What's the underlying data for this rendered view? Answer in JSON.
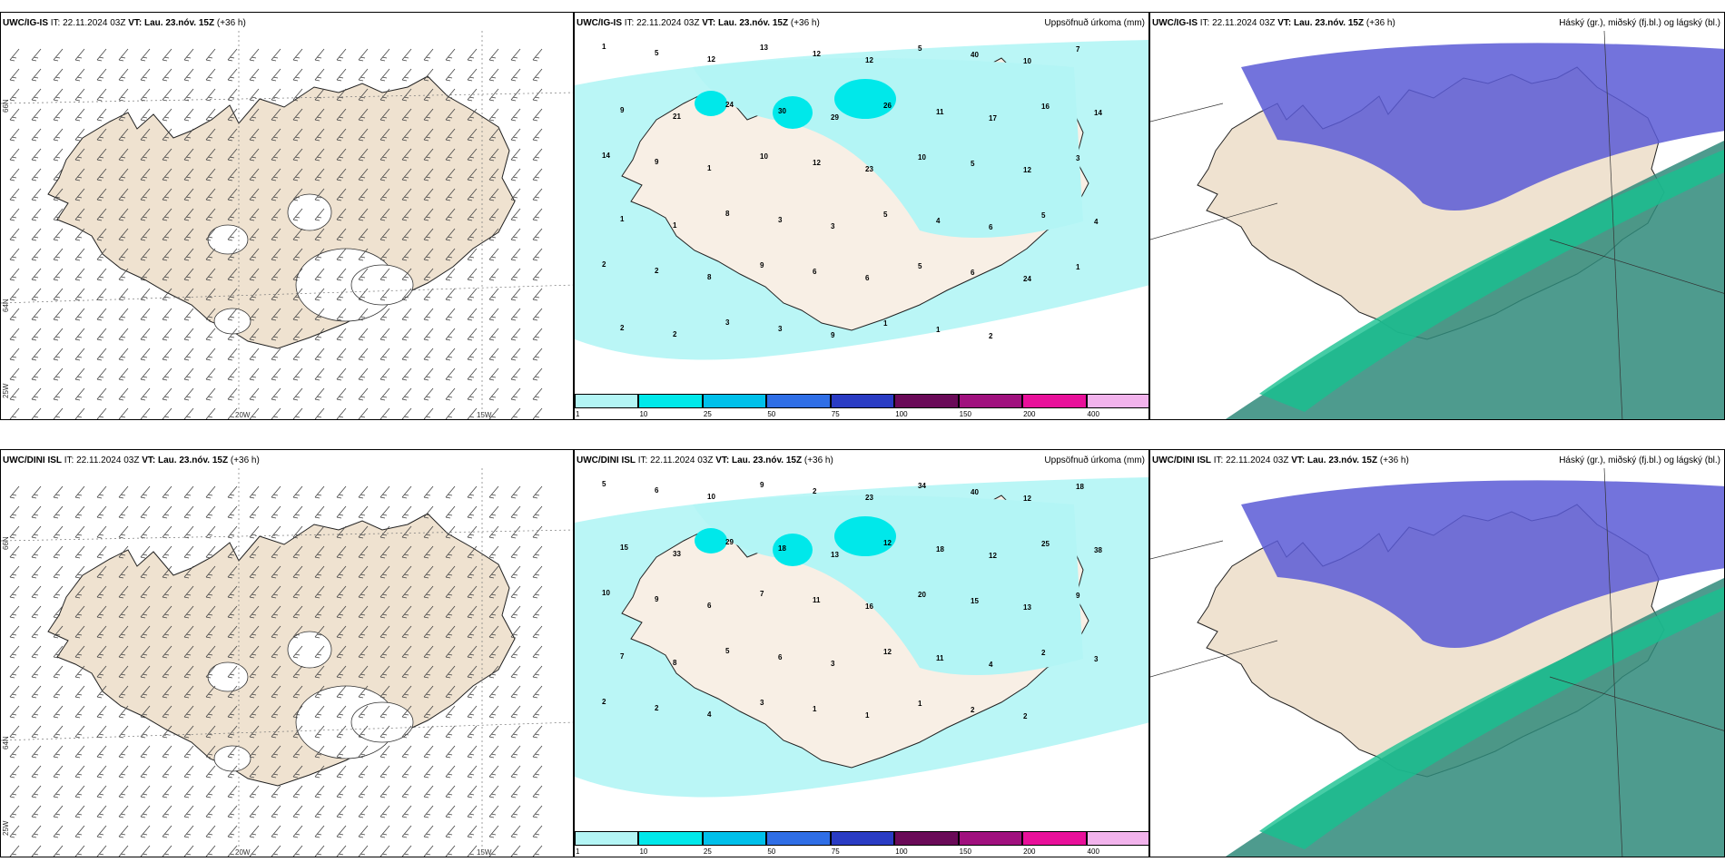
{
  "rows": [
    {
      "model": "UWC/IG-IS",
      "it_label": "IT:",
      "it_value": "22.11.2024 03Z",
      "vt_label": "VT:",
      "vt_value": "Lau. 23.nóv. 15Z",
      "lead": "(+36 h)"
    },
    {
      "model": "UWC/DINI ISL",
      "it_label": "IT:",
      "it_value": "22.11.2024 03Z",
      "vt_label": "VT:",
      "vt_value": "Lau. 23.nóv. 15Z",
      "lead": "(+36 h)"
    }
  ],
  "precip_title": "Uppsöfnuð úrkoma (mm)",
  "cloud_title": "Háský (gr.), miðský (fj.bl.) og lágský (bl.)",
  "axis": {
    "lon_20": "20W",
    "lon_15": "15W",
    "lat_66": "66N",
    "lat_64": "64N",
    "lon_25": "25W"
  },
  "colorbar": {
    "ticks": [
      "1",
      "10",
      "25",
      "50",
      "75",
      "100",
      "150",
      "200",
      "400"
    ],
    "colors": [
      "#b3f5f5",
      "#00e8ea",
      "#00c0ea",
      "#2f6ee6",
      "#2a3cc4",
      "#6a0a58",
      "#a0107e",
      "#e8109a",
      "#f2b3ec"
    ]
  },
  "colors": {
    "land": "#efe2d0",
    "land_light": "#f8efe5",
    "precip": "#b3f5f5",
    "precip_mid": "#00e8ea",
    "cloud_high": "#5a5ad6",
    "cloud_mid": "#2f8a7a",
    "cloud_low": "#18c090"
  },
  "precip_labels_top": [
    "1",
    "5",
    "12",
    "13",
    "12",
    "12",
    "5",
    "40",
    "10",
    "7",
    "9",
    "21",
    "24",
    "30",
    "29",
    "26",
    "11",
    "17",
    "16",
    "14",
    "14",
    "9",
    "1",
    "10",
    "12",
    "23",
    "10",
    "5",
    "12",
    "3",
    "1",
    "1",
    "8",
    "3",
    "3",
    "5",
    "4",
    "6",
    "5",
    "4",
    "2",
    "2",
    "8",
    "9",
    "6",
    "6",
    "5",
    "6",
    "24",
    "1",
    "2",
    "2",
    "3",
    "3",
    "9",
    "1",
    "1",
    "2"
  ],
  "precip_labels_bottom": [
    "5",
    "6",
    "10",
    "9",
    "2",
    "23",
    "34",
    "40",
    "12",
    "18",
    "15",
    "33",
    "29",
    "18",
    "13",
    "12",
    "18",
    "12",
    "25",
    "38",
    "10",
    "9",
    "6",
    "7",
    "11",
    "16",
    "20",
    "15",
    "13",
    "9",
    "7",
    "8",
    "5",
    "6",
    "3",
    "12",
    "11",
    "4",
    "2",
    "3",
    "2",
    "2",
    "4",
    "3",
    "1",
    "1",
    "1",
    "2",
    "2"
  ]
}
